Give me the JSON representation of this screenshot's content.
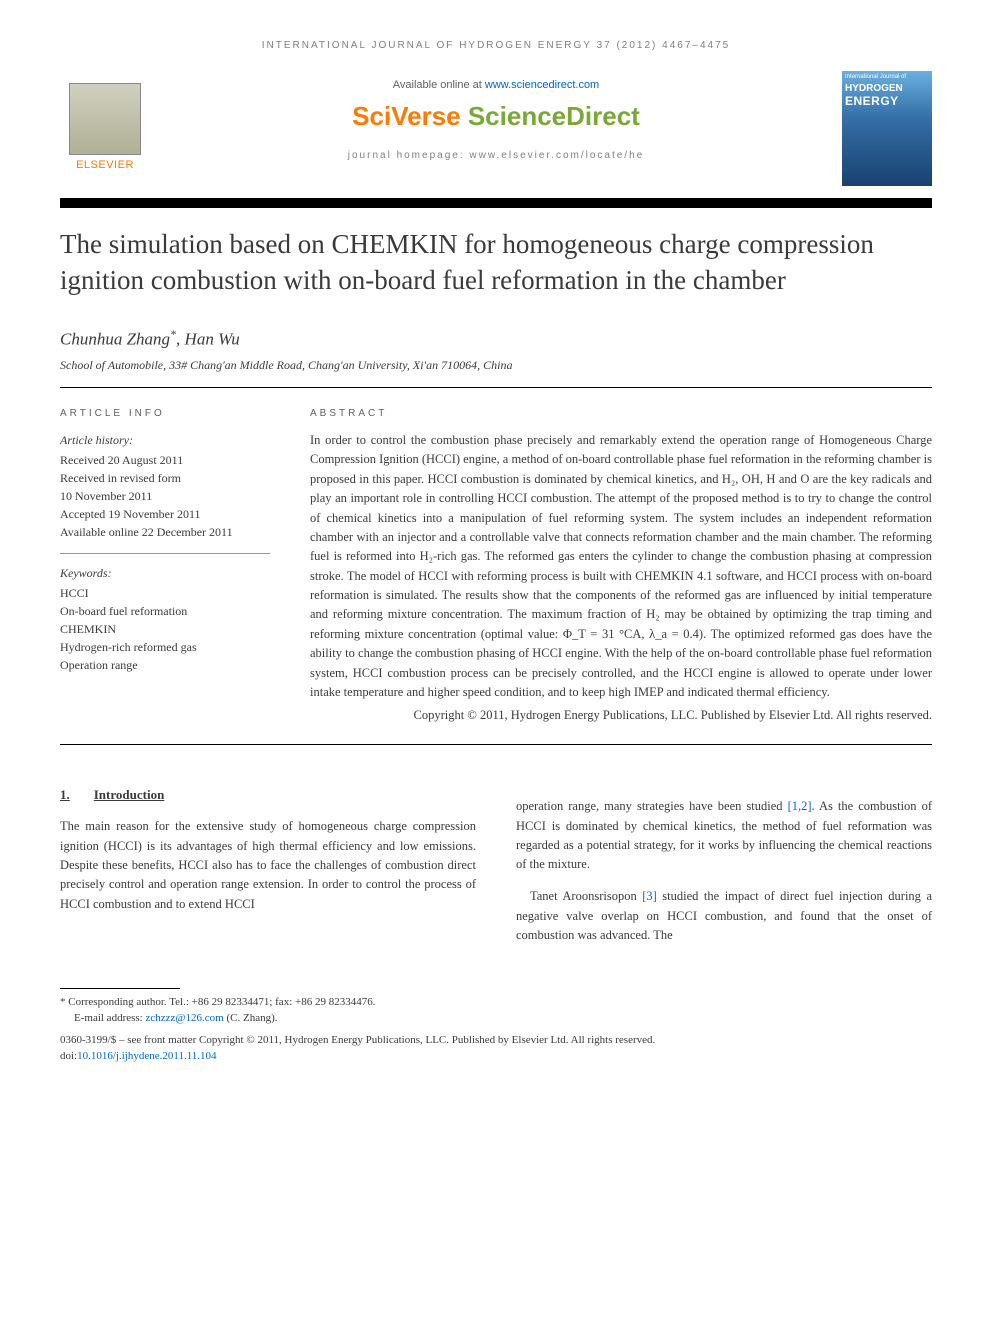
{
  "running_head": "INTERNATIONAL JOURNAL OF HYDROGEN ENERGY 37 (2012) 4467–4475",
  "header": {
    "available_prefix": "Available online at ",
    "available_link": "www.sciencedirect.com",
    "platform_part1": "SciVerse ",
    "platform_part2": "ScienceDirect",
    "homepage_prefix": "journal homepage: ",
    "homepage_url": "www.elsevier.com/locate/he",
    "publisher": "ELSEVIER",
    "cover_top": "International Journal of",
    "cover_mid": "HYDROGEN",
    "cover_bot": "ENERGY"
  },
  "title": "The simulation based on CHEMKIN for homogeneous charge compression ignition combustion with on-board fuel reformation in the chamber",
  "authors": {
    "a1": "Chunhua Zhang",
    "corr": "*",
    "sep": ", ",
    "a2": "Han Wu"
  },
  "affiliation": "School of Automobile, 33# Chang'an Middle Road, Chang'an University, Xi'an 710064, China",
  "info": {
    "heading": "ARTICLE INFO",
    "history_label": "Article history:",
    "received": "Received 20 August 2011",
    "revised1": "Received in revised form",
    "revised2": "10 November 2011",
    "accepted": "Accepted 19 November 2011",
    "online": "Available online 22 December 2011",
    "keywords_label": "Keywords:",
    "k1": "HCCI",
    "k2": "On-board fuel reformation",
    "k3": "CHEMKIN",
    "k4": "Hydrogen-rich reformed gas",
    "k5": "Operation range"
  },
  "abstract": {
    "heading": "ABSTRACT",
    "body": "In order to control the combustion phase precisely and remarkably extend the operation range of Homogeneous Charge Compression Ignition (HCCI) engine, a method of on-board controllable phase fuel reformation in the reforming chamber is proposed in this paper. HCCI combustion is dominated by chemical kinetics, and H₂, OH, H and O are the key radicals and play an important role in controlling HCCI combustion. The attempt of the proposed method is to try to change the control of chemical kinetics into a manipulation of fuel reforming system. The system includes an independent reformation chamber with an injector and a controllable valve that connects reformation chamber and the main chamber. The reforming fuel is reformed into H₂-rich gas. The reformed gas enters the cylinder to change the combustion phasing at compression stroke. The model of HCCI with reforming process is built with CHEMKIN 4.1 software, and HCCI process with on-board reformation is simulated. The results show that the components of the reformed gas are influenced by initial temperature and reforming mixture concentration. The maximum fraction of H₂ may be obtained by optimizing the trap timing and reforming mixture concentration (optimal value: Φ_T = 31 °CA, λ_a = 0.4). The optimized reformed gas does have the ability to change the combustion phasing of HCCI engine. With the help of the on-board controllable phase fuel reformation system, HCCI combustion process can be precisely controlled, and the HCCI engine is allowed to operate under lower intake temperature and higher speed condition, and to keep high IMEP and indicated thermal efficiency.",
    "copyright": "Copyright © 2011, Hydrogen Energy Publications, LLC. Published by Elsevier Ltd. All rights reserved."
  },
  "section1": {
    "num": "1.",
    "title": "Introduction"
  },
  "body": {
    "left_p1": "The main reason for the extensive study of homogeneous charge compression ignition (HCCI) is its advantages of high thermal efficiency and low emissions. Despite these benefits, HCCI also has to face the challenges of combustion direct precisely control and operation range extension. In order to control the process of HCCI combustion and to extend HCCI",
    "right_p1a": "operation range, many strategies have been studied ",
    "right_cite1": "[1,2]",
    "right_p1b": ". As the combustion of HCCI is dominated by chemical kinetics, the method of fuel reformation was regarded as a potential strategy, for it works by influencing the chemical reactions of the mixture.",
    "right_p2a": "Tanet Aroonsrisopon ",
    "right_cite2": "[3]",
    "right_p2b": " studied the impact of direct fuel injection during a negative valve overlap on HCCI combustion, and found that the onset of combustion was advanced. The"
  },
  "footnotes": {
    "corr_label": "* Corresponding author. ",
    "tel": "Tel.: +86 29 82334471; fax: +86 29 82334476.",
    "email_label": "E-mail address: ",
    "email": "zchzzz@126.com",
    "email_suffix": " (C. Zhang).",
    "issn": "0360-3199/$ – see front matter Copyright © 2011, Hydrogen Energy Publications, LLC. Published by Elsevier Ltd. All rights reserved.",
    "doi_label": "doi:",
    "doi": "10.1016/j.ijhydene.2011.11.104"
  }
}
